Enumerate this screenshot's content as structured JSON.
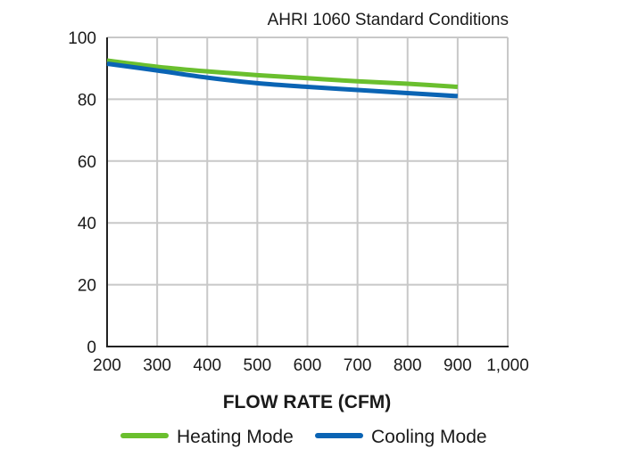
{
  "chart_data": {
    "type": "line",
    "title": "",
    "subtitle": "AHRI 1060 Standard Conditions",
    "xlabel": "FLOW RATE (CFM)",
    "ylabel": "",
    "xlim": [
      200,
      1000
    ],
    "ylim": [
      0,
      100
    ],
    "xticks": [
      200,
      300,
      400,
      500,
      600,
      700,
      800,
      900,
      1000
    ],
    "xtick_labels": [
      "200",
      "300",
      "400",
      "500",
      "600",
      "700",
      "800",
      "900",
      "1,000"
    ],
    "yticks": [
      0,
      20,
      40,
      60,
      80,
      100
    ],
    "ytick_labels": [
      "0",
      "20",
      "40",
      "60",
      "80",
      "100"
    ],
    "grid": true,
    "legend_position": "bottom",
    "x": [
      200,
      300,
      400,
      500,
      600,
      700,
      800,
      900
    ],
    "series": [
      {
        "name": "Heating Mode",
        "color": "#6abf2e",
        "values": [
          92.5,
          90.5,
          89,
          87.8,
          86.8,
          85.8,
          85,
          84
        ]
      },
      {
        "name": "Cooling Mode",
        "color": "#0a64b4",
        "values": [
          91.5,
          89.3,
          87,
          85.2,
          84,
          83,
          82,
          81
        ]
      }
    ]
  }
}
